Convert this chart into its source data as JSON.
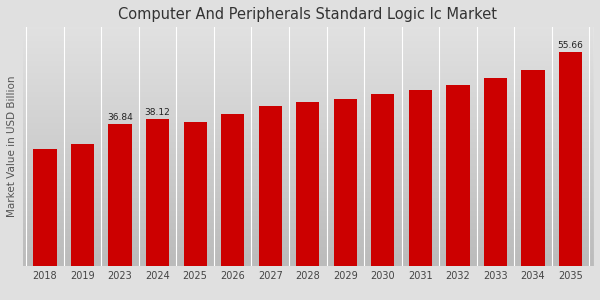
{
  "title": "Computer And Peripherals Standard Logic Ic Market",
  "ylabel": "Market Value in USD Billion",
  "bar_color": "#cc0000",
  "background_top": "#f0f0f0",
  "background_bottom": "#c8c8c8",
  "categories": [
    "2018",
    "2019",
    "2023",
    "2024",
    "2025",
    "2026",
    "2027",
    "2028",
    "2029",
    "2030",
    "2031",
    "2032",
    "2033",
    "2034",
    "2035"
  ],
  "values": [
    30.5,
    31.8,
    36.84,
    38.12,
    37.5,
    39.5,
    41.5,
    42.5,
    43.5,
    44.8,
    45.8,
    47.0,
    48.8,
    50.8,
    55.66
  ],
  "annotated": {
    "2023": "36.84",
    "2024": "38.12",
    "2035": "55.66"
  },
  "bottom_bar_color": "#cc0000",
  "ylim": [
    0,
    62
  ],
  "title_fontsize": 10.5,
  "tick_fontsize": 7,
  "ylabel_fontsize": 7.5,
  "annotation_fontsize": 6.5
}
